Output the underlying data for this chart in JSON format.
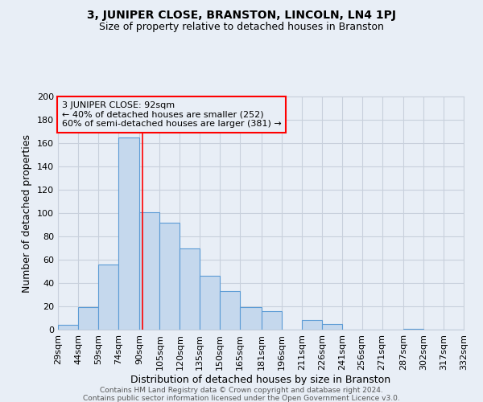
{
  "title": "3, JUNIPER CLOSE, BRANSTON, LINCOLN, LN4 1PJ",
  "subtitle": "Size of property relative to detached houses in Branston",
  "xlabel": "Distribution of detached houses by size in Branston",
  "ylabel": "Number of detached properties",
  "bin_edges": [
    29,
    44,
    59,
    74,
    90,
    105,
    120,
    135,
    150,
    165,
    181,
    196,
    211,
    226,
    241,
    256,
    271,
    287,
    302,
    317,
    332
  ],
  "bar_heights": [
    4,
    19,
    56,
    165,
    101,
    92,
    70,
    46,
    33,
    19,
    16,
    0,
    8,
    5,
    0,
    0,
    0,
    1,
    0,
    0
  ],
  "tick_labels": [
    "29sqm",
    "44sqm",
    "59sqm",
    "74sqm",
    "90sqm",
    "105sqm",
    "120sqm",
    "135sqm",
    "150sqm",
    "165sqm",
    "181sqm",
    "196sqm",
    "211sqm",
    "226sqm",
    "241sqm",
    "256sqm",
    "271sqm",
    "287sqm",
    "302sqm",
    "317sqm",
    "332sqm"
  ],
  "bar_color": "#c5d8ed",
  "bar_edge_color": "#5b9bd5",
  "vline_x": 92,
  "vline_color": "red",
  "annotation_text": "3 JUNIPER CLOSE: 92sqm\n← 40% of detached houses are smaller (252)\n60% of semi-detached houses are larger (381) →",
  "annotation_box_color": "red",
  "ylim": [
    0,
    200
  ],
  "yticks": [
    0,
    20,
    40,
    60,
    80,
    100,
    120,
    140,
    160,
    180,
    200
  ],
  "grid_color": "#c8d0dc",
  "background_color": "#e8eef6",
  "footer_line1": "Contains HM Land Registry data © Crown copyright and database right 2024.",
  "footer_line2": "Contains public sector information licensed under the Open Government Licence v3.0."
}
